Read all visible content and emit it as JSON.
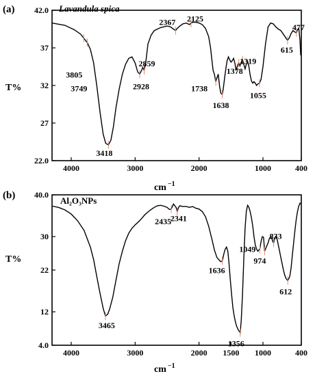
{
  "panels": [
    {
      "panel_label": "(a)",
      "sample": "Lavandula spica",
      "ylabel": "T%",
      "xlabel": "cm",
      "xlabel_exponent": "−1"
    },
    {
      "panel_label": "(b)",
      "sample": "Al₂O₃NPs",
      "ylabel": "T%",
      "xlabel": "cm",
      "xlabel_exponent": "−1"
    }
  ],
  "chart_data": [
    {
      "type": "line",
      "title": "Lavandula spica",
      "xlabel": "cm−1",
      "ylabel": "T%",
      "xlim": [
        4300,
        400
      ],
      "ylim": [
        22.0,
        42.0
      ],
      "xticks": [
        4000,
        3000,
        2000,
        1000,
        400
      ],
      "xtick_labels": [
        "4000",
        "3000",
        "2000",
        "1000",
        "400"
      ],
      "yticks": [
        22.0,
        27,
        32,
        37,
        42.0
      ],
      "ytick_labels": [
        "22.0",
        "27",
        "32",
        "37",
        "42.0"
      ],
      "series": [
        {
          "x": [
            4300,
            4100,
            3950,
            3850,
            3805,
            3749,
            3700,
            3650,
            3600,
            3550,
            3500,
            3460,
            3418,
            3380,
            3340,
            3300,
            3250,
            3200,
            3150,
            3100,
            3050,
            3000,
            2960,
            2928,
            2900,
            2880,
            2859,
            2830,
            2800,
            2750,
            2700,
            2600,
            2500,
            2450,
            2400,
            2367,
            2340,
            2300,
            2250,
            2200,
            2150,
            2125,
            2100,
            2050,
            2000,
            1950,
            1900,
            1850,
            1820,
            1800,
            1780,
            1760,
            1738,
            1720,
            1700,
            1680,
            1660,
            1638,
            1620,
            1600,
            1580,
            1560,
            1540,
            1520,
            1500,
            1480,
            1460,
            1440,
            1420,
            1400,
            1378,
            1360,
            1340,
            1319,
            1300,
            1280,
            1260,
            1240,
            1220,
            1200,
            1180,
            1160,
            1140,
            1120,
            1100,
            1080,
            1055,
            1030,
            1000,
            960,
            920,
            880,
            840,
            800,
            760,
            720,
            680,
            640,
            615,
            590,
            560,
            530,
            500,
            477,
            460,
            440,
            420,
            410
          ],
          "y": [
            40.3,
            40.0,
            39.4,
            38.8,
            38.3,
            37.7,
            36.8,
            35.0,
            32.0,
            28.5,
            25.5,
            24.3,
            24.1,
            24.7,
            26.5,
            29.0,
            31.5,
            33.5,
            34.8,
            35.6,
            35.8,
            35.0,
            33.8,
            33.5,
            34.0,
            34.4,
            34.0,
            35.3,
            37.5,
            38.7,
            39.3,
            39.7,
            39.9,
            39.8,
            39.5,
            39.3,
            39.6,
            39.9,
            40.2,
            40.3,
            40.1,
            40.3,
            40.4,
            40.4,
            40.3,
            40.1,
            39.6,
            38.5,
            37.0,
            35.5,
            34.0,
            33.5,
            32.5,
            33.0,
            33.5,
            32.0,
            31.0,
            30.8,
            31.6,
            33.0,
            34.3,
            35.3,
            35.8,
            35.4,
            35.1,
            35.3,
            35.6,
            35.0,
            34.0,
            34.6,
            35.0,
            34.6,
            35.1,
            35.4,
            34.8,
            34.2,
            34.8,
            35.2,
            34.5,
            33.4,
            32.6,
            32.3,
            32.5,
            32.3,
            32.0,
            32.2,
            32.3,
            32.8,
            34.5,
            37.5,
            39.8,
            40.3,
            40.2,
            39.8,
            39.5,
            39.3,
            38.8,
            38.3,
            38.0,
            38.3,
            38.9,
            39.3,
            39.1,
            39.0,
            39.4,
            39.6,
            38.0,
            36.0
          ]
        }
      ],
      "peak_labels": [
        "3805",
        "3749",
        "3418",
        "2928",
        "2859",
        "2367",
        "2125",
        "1738",
        "1638",
        "1378",
        "1319",
        "1055",
        "615",
        "477"
      ],
      "peak_positions": [
        3805,
        3749,
        3418,
        2928,
        2859,
        2367,
        2125,
        1738,
        1638,
        1378,
        1319,
        1055,
        615,
        477
      ],
      "grid": false,
      "legend": "none"
    },
    {
      "type": "line",
      "title": "Al2O3NPs",
      "xlabel": "cm−1",
      "ylabel": "T%",
      "xlim": [
        4300,
        400
      ],
      "ylim": [
        4.0,
        40.0
      ],
      "xticks": [
        4000,
        3000,
        2000,
        1500,
        1000,
        400
      ],
      "xtick_labels": [
        "4000",
        "3000",
        "2000",
        "1500",
        "1000",
        "400"
      ],
      "yticks": [
        4.0,
        12,
        22,
        30,
        40.0
      ],
      "ytick_labels": [
        "4.0",
        "12",
        "22",
        "30",
        "40.0"
      ],
      "series": [
        {
          "x": [
            4300,
            4200,
            4100,
            4000,
            3900,
            3800,
            3700,
            3650,
            3600,
            3550,
            3500,
            3465,
            3430,
            3400,
            3350,
            3300,
            3250,
            3200,
            3150,
            3100,
            3050,
            3000,
            2950,
            2900,
            2850,
            2800,
            2750,
            2700,
            2650,
            2600,
            2550,
            2500,
            2465,
            2435,
            2400,
            2380,
            2360,
            2341,
            2320,
            2300,
            2260,
            2200,
            2150,
            2100,
            2050,
            2000,
            1950,
            1900,
            1850,
            1800,
            1760,
            1720,
            1680,
            1660,
            1636,
            1610,
            1590,
            1570,
            1550,
            1530,
            1510,
            1490,
            1470,
            1450,
            1430,
            1410,
            1390,
            1370,
            1356,
            1340,
            1320,
            1300,
            1280,
            1260,
            1240,
            1220,
            1200,
            1180,
            1160,
            1140,
            1120,
            1100,
            1080,
            1065,
            1049,
            1030,
            1010,
            990,
            974,
            960,
            940,
            920,
            900,
            880,
            860,
            845,
            833,
            820,
            800,
            780,
            760,
            740,
            720,
            700,
            680,
            660,
            640,
            620,
            612,
            600,
            580,
            560,
            540,
            520,
            500,
            480,
            460,
            440,
            420,
            410
          ],
          "y": [
            37.3,
            37.0,
            36.4,
            35.4,
            33.8,
            31.5,
            27.5,
            24.5,
            20.5,
            16.5,
            12.8,
            11.0,
            11.4,
            12.6,
            15.5,
            19.5,
            23.5,
            26.5,
            29.0,
            30.8,
            32.0,
            32.8,
            33.5,
            34.3,
            35.2,
            35.9,
            36.5,
            37.0,
            37.4,
            37.5,
            37.3,
            37.0,
            36.5,
            36.6,
            37.8,
            37.4,
            37.0,
            36.0,
            37.0,
            37.4,
            37.2,
            37.2,
            37.0,
            37.2,
            36.8,
            36.6,
            36.0,
            34.8,
            32.5,
            29.5,
            26.8,
            25.0,
            24.3,
            24.0,
            24.2,
            26.0,
            27.0,
            27.5,
            26.5,
            23.5,
            19.5,
            16.0,
            13.0,
            11.0,
            9.5,
            8.5,
            7.8,
            7.3,
            7.0,
            10.0,
            16.0,
            24.5,
            32.0,
            36.0,
            37.5,
            37.0,
            36.0,
            34.5,
            32.5,
            30.0,
            28.0,
            27.0,
            26.5,
            26.8,
            27.0,
            28.8,
            30.0,
            29.8,
            26.5,
            27.0,
            27.8,
            28.5,
            29.5,
            30.0,
            29.5,
            28.8,
            28.5,
            29.5,
            30.0,
            29.5,
            28.0,
            26.5,
            25.0,
            23.5,
            22.0,
            20.8,
            20.0,
            19.6,
            19.5,
            19.8,
            20.5,
            22.5,
            25.5,
            28.5,
            31.5,
            34.0,
            36.0,
            37.3,
            38.0,
            37.8
          ]
        }
      ],
      "peak_labels": [
        "3465",
        "2435",
        "2341",
        "1636",
        "1356",
        "1049",
        "974",
        "833",
        "612"
      ],
      "peak_positions": [
        3465,
        2435,
        2341,
        1636,
        1356,
        1049,
        974,
        833,
        612
      ],
      "grid": false,
      "legend": "none"
    }
  ]
}
